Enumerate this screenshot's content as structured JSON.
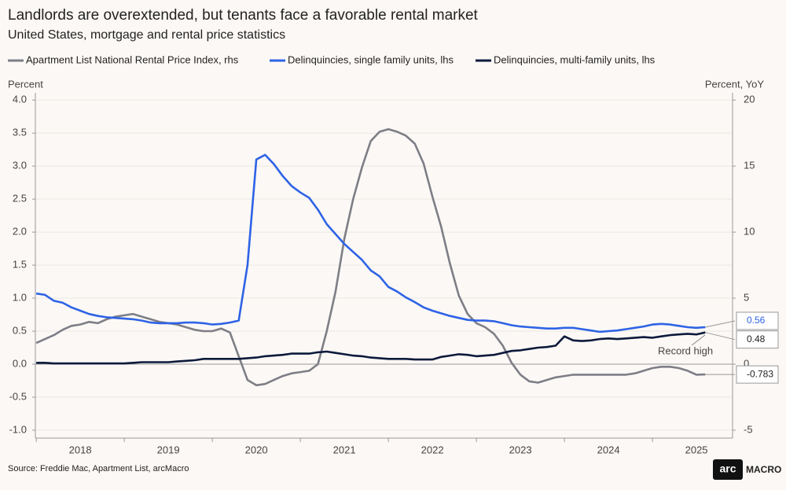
{
  "chart_data": {
    "type": "line",
    "title": "Landlords are overextended, but tenants face a favorable rental market",
    "subtitle": "United States, mortgage and rental price statistics",
    "y_label": "Percent",
    "y2_label": "Percent, YoY",
    "source": "Source: Freddie Mac, Apartment List, arcMacro",
    "logo": "arc",
    "logo_text": "MACRO",
    "annotation": "Record high",
    "x": [
      2018.0,
      2018.1,
      2018.2,
      2018.3,
      2018.4,
      2018.5,
      2018.6,
      2018.7,
      2018.8,
      2018.9,
      2019.0,
      2019.1,
      2019.2,
      2019.3,
      2019.4,
      2019.5,
      2019.6,
      2019.7,
      2019.8,
      2019.9,
      2020.0,
      2020.1,
      2020.2,
      2020.3,
      2020.4,
      2020.5,
      2020.6,
      2020.7,
      2020.8,
      2020.9,
      2021.0,
      2021.1,
      2021.2,
      2021.3,
      2021.4,
      2021.5,
      2021.6,
      2021.7,
      2021.8,
      2021.9,
      2022.0,
      2022.1,
      2022.2,
      2022.3,
      2022.4,
      2022.5,
      2022.6,
      2022.7,
      2022.8,
      2022.9,
      2023.0,
      2023.1,
      2023.2,
      2023.3,
      2023.4,
      2023.5,
      2023.6,
      2023.7,
      2023.8,
      2023.9,
      2024.0,
      2024.1,
      2024.2,
      2024.3,
      2024.4,
      2024.5,
      2024.6,
      2024.7,
      2024.8,
      2024.9,
      2025.0,
      2025.1,
      2025.2,
      2025.3,
      2025.4,
      2025.5,
      2025.6
    ],
    "xlim": [
      2017.99,
      2025.91
    ],
    "xticks": [
      2018,
      2019,
      2020,
      2021,
      2022,
      2023,
      2024,
      2025
    ],
    "ylim": [
      -1.12,
      4.11
    ],
    "yticks": [
      {
        "value": -1,
        "label": "-1.0"
      },
      {
        "value": -0.5,
        "label": "-0.5"
      },
      {
        "value": 0,
        "label": "0.0"
      },
      {
        "value": 0.5,
        "label": "0.5"
      },
      {
        "value": 1,
        "label": "1.0"
      },
      {
        "value": 1.5,
        "label": "1.5"
      },
      {
        "value": 2,
        "label": "2.0"
      },
      {
        "value": 2.5,
        "label": "2.5"
      },
      {
        "value": 3,
        "label": "3.0"
      },
      {
        "value": 3.5,
        "label": "3.5"
      },
      {
        "value": 4,
        "label": "4.0"
      }
    ],
    "y2lim": [
      -5.6,
      20.55
    ],
    "y2ticks": [
      -5,
      0,
      5,
      10,
      15,
      20
    ],
    "grid": true,
    "legend": "top",
    "series": [
      {
        "name": "Apartment List National Rental Price Index, rhs",
        "color": "#7d7e86",
        "axis": "y2",
        "values": [
          1.6,
          1.9,
          2.2,
          2.6,
          2.9,
          3.0,
          3.2,
          3.1,
          3.4,
          3.6,
          3.7,
          3.8,
          3.6,
          3.4,
          3.2,
          3.1,
          3.0,
          2.8,
          2.6,
          2.5,
          2.5,
          2.7,
          2.4,
          0.6,
          -1.2,
          -1.6,
          -1.5,
          -1.2,
          -0.9,
          -0.7,
          -0.6,
          -0.5,
          0.0,
          2.5,
          5.5,
          9.5,
          12.5,
          14.9,
          16.9,
          17.6,
          17.8,
          17.6,
          17.3,
          16.7,
          15.2,
          12.7,
          10.4,
          7.6,
          5.2,
          3.8,
          3.1,
          2.8,
          2.3,
          1.4,
          0.1,
          -0.8,
          -1.3,
          -1.4,
          -1.2,
          -1.0,
          -0.9,
          -0.8,
          -0.8,
          -0.8,
          -0.8,
          -0.8,
          -0.8,
          -0.8,
          -0.7,
          -0.5,
          -0.3,
          -0.2,
          -0.2,
          -0.3,
          -0.5,
          -0.8,
          -0.783
        ]
      },
      {
        "name": "Delinquincies, single family units, lhs",
        "color": "#2e63e6",
        "values": [
          1.07,
          1.05,
          0.96,
          0.93,
          0.86,
          0.81,
          0.76,
          0.73,
          0.71,
          0.7,
          0.69,
          0.68,
          0.66,
          0.63,
          0.62,
          0.62,
          0.62,
          0.63,
          0.63,
          0.62,
          0.6,
          0.61,
          0.63,
          0.66,
          1.5,
          3.1,
          3.17,
          3.03,
          2.85,
          2.7,
          2.6,
          2.52,
          2.34,
          2.12,
          1.97,
          1.82,
          1.7,
          1.58,
          1.42,
          1.33,
          1.17,
          1.1,
          1.01,
          0.94,
          0.86,
          0.81,
          0.77,
          0.73,
          0.7,
          0.67,
          0.66,
          0.66,
          0.65,
          0.62,
          0.59,
          0.57,
          0.56,
          0.55,
          0.54,
          0.54,
          0.55,
          0.55,
          0.53,
          0.51,
          0.49,
          0.5,
          0.51,
          0.53,
          0.55,
          0.57,
          0.6,
          0.61,
          0.6,
          0.58,
          0.56,
          0.55,
          0.56
        ]
      },
      {
        "name": "Delinquincies, multi-family units, lhs",
        "color": "#0c1a3c",
        "values": [
          0.02,
          0.02,
          0.01,
          0.01,
          0.01,
          0.01,
          0.01,
          0.01,
          0.01,
          0.01,
          0.01,
          0.02,
          0.03,
          0.03,
          0.03,
          0.03,
          0.04,
          0.05,
          0.06,
          0.08,
          0.08,
          0.08,
          0.08,
          0.08,
          0.09,
          0.1,
          0.12,
          0.13,
          0.14,
          0.16,
          0.16,
          0.16,
          0.18,
          0.19,
          0.17,
          0.15,
          0.13,
          0.12,
          0.1,
          0.09,
          0.08,
          0.08,
          0.08,
          0.07,
          0.07,
          0.07,
          0.11,
          0.13,
          0.15,
          0.14,
          0.12,
          0.13,
          0.14,
          0.17,
          0.2,
          0.21,
          0.23,
          0.25,
          0.26,
          0.28,
          0.42,
          0.36,
          0.35,
          0.36,
          0.38,
          0.39,
          0.38,
          0.39,
          0.4,
          0.41,
          0.4,
          0.42,
          0.44,
          0.45,
          0.46,
          0.45,
          0.48
        ]
      }
    ]
  }
}
